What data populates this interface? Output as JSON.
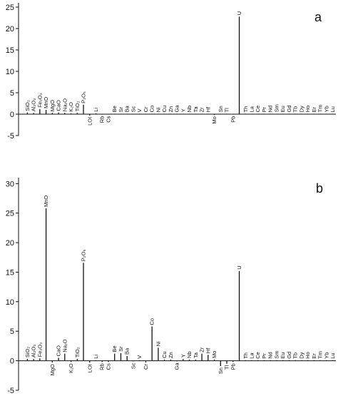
{
  "chart_data": [
    {
      "type": "bar",
      "panel_label": "a",
      "ylim": [
        -5,
        26
      ],
      "yticks": [
        -5,
        0,
        5,
        10,
        15,
        20,
        25
      ],
      "categories": [
        {
          "name": "SiO₂",
          "value": 0.4
        },
        {
          "name": "Al₂O₃",
          "value": 0.3
        },
        {
          "name": "Fe₂O₃",
          "value": 1.2
        },
        {
          "name": "MnO",
          "value": 1.0
        },
        {
          "name": "MgO",
          "value": 0.3
        },
        {
          "name": "CaO",
          "value": 0.4
        },
        {
          "name": "Na₂O",
          "value": 0.3
        },
        {
          "name": "K₂O",
          "value": 0.2
        },
        {
          "name": "TiO₂",
          "value": 0.3
        },
        {
          "name": "P₂O₅",
          "value": 2.2
        },
        {
          "name": "LOI",
          "value": -0.3
        },
        {
          "name": "Li",
          "value": 0.2
        },
        {
          "name": "Rb",
          "value": -0.1
        },
        {
          "name": "Cs",
          "value": -0.1
        },
        {
          "name": "Be",
          "value": 0.1
        },
        {
          "name": "Sr",
          "value": 0.1
        },
        {
          "name": "Ba",
          "value": 0.1
        },
        {
          "name": "Sc",
          "value": 0.1
        },
        {
          "name": "V",
          "value": 0.1
        },
        {
          "name": "Cr",
          "value": 0.1
        },
        {
          "name": "Co",
          "value": 0.1
        },
        {
          "name": "Ni",
          "value": 0.1
        },
        {
          "name": "Cu",
          "value": 0.1
        },
        {
          "name": "Zn",
          "value": 0.1
        },
        {
          "name": "Ga",
          "value": 0.1
        },
        {
          "name": "Y",
          "value": 0.1
        },
        {
          "name": "Nb",
          "value": 0.1
        },
        {
          "name": "Ta",
          "value": 0.1
        },
        {
          "name": "Zr",
          "value": 0.1
        },
        {
          "name": "Hf",
          "value": 0.1
        },
        {
          "name": "Mo",
          "value": -0.2
        },
        {
          "name": "Sn",
          "value": 0.1
        },
        {
          "name": "Tl",
          "value": 0.1
        },
        {
          "name": "Pb",
          "value": -0.1
        },
        {
          "name": "U",
          "value": 22.8
        },
        {
          "name": "Th",
          "value": 0.1
        },
        {
          "name": "La",
          "value": 0.1
        },
        {
          "name": "Ce",
          "value": 0.1
        },
        {
          "name": "Pr",
          "value": 0.1
        },
        {
          "name": "Nd",
          "value": 0.1
        },
        {
          "name": "Sm",
          "value": 0.1
        },
        {
          "name": "Eu",
          "value": 0.1
        },
        {
          "name": "Gd",
          "value": 0.1
        },
        {
          "name": "Tb",
          "value": 0.1
        },
        {
          "name": "Dy",
          "value": 0.1
        },
        {
          "name": "Ho",
          "value": 0.1
        },
        {
          "name": "Er",
          "value": 0.1
        },
        {
          "name": "Tm",
          "value": 0.1
        },
        {
          "name": "Yb",
          "value": 0.1
        },
        {
          "name": "Lu",
          "value": 0.1
        }
      ]
    },
    {
      "type": "bar",
      "panel_label": "b",
      "ylim": [
        -5,
        31
      ],
      "yticks": [
        -5,
        0,
        5,
        10,
        15,
        20,
        25,
        30
      ],
      "categories": [
        {
          "name": "SiO₂",
          "value": 0.3
        },
        {
          "name": "Al₂O₃",
          "value": 0.3
        },
        {
          "name": "Fe₂O₃",
          "value": 0.4
        },
        {
          "name": "MnO",
          "value": 25.8
        },
        {
          "name": "MgO",
          "value": -0.3
        },
        {
          "name": "CaO",
          "value": 0.5
        },
        {
          "name": "Na₂O",
          "value": 1.2
        },
        {
          "name": "K₂O",
          "value": -0.2
        },
        {
          "name": "TiO₂",
          "value": 0.3
        },
        {
          "name": "P₂O₅",
          "value": 16.6
        },
        {
          "name": "LOI",
          "value": -0.3
        },
        {
          "name": "Li",
          "value": 0.1
        },
        {
          "name": "Rb",
          "value": -0.2
        },
        {
          "name": "Cs",
          "value": -0.2
        },
        {
          "name": "Be",
          "value": 1.2
        },
        {
          "name": "Sr",
          "value": 1.3
        },
        {
          "name": "Ba",
          "value": 0.8
        },
        {
          "name": "Sc",
          "value": -0.1
        },
        {
          "name": "V",
          "value": 0.1
        },
        {
          "name": "Cr",
          "value": -0.3
        },
        {
          "name": "Co",
          "value": 5.8
        },
        {
          "name": "Ni",
          "value": 2.2
        },
        {
          "name": "Cu",
          "value": 0.2
        },
        {
          "name": "Zn",
          "value": 0.2
        },
        {
          "name": "Ga",
          "value": -0.1
        },
        {
          "name": "Y",
          "value": 0.3
        },
        {
          "name": "Nb",
          "value": 0.2
        },
        {
          "name": "Ta",
          "value": 0.2
        },
        {
          "name": "Zr",
          "value": 1.2
        },
        {
          "name": "Hf",
          "value": 1.0
        },
        {
          "name": "Mo",
          "value": 0.2
        },
        {
          "name": "Sn",
          "value": -0.9
        },
        {
          "name": "Tl",
          "value": -0.5
        },
        {
          "name": "Pb",
          "value": -0.2
        },
        {
          "name": "U",
          "value": 15.2
        },
        {
          "name": "Th",
          "value": 0.1
        },
        {
          "name": "La",
          "value": 0.1
        },
        {
          "name": "Ce",
          "value": 0.1
        },
        {
          "name": "Pr",
          "value": 0.1
        },
        {
          "name": "Nd",
          "value": 0.1
        },
        {
          "name": "Sm",
          "value": 0.1
        },
        {
          "name": "Eu",
          "value": 0.1
        },
        {
          "name": "Gd",
          "value": 0.1
        },
        {
          "name": "Tb",
          "value": 0.1
        },
        {
          "name": "Dy",
          "value": 0.1
        },
        {
          "name": "Ho",
          "value": 0.1
        },
        {
          "name": "Er",
          "value": 0.1
        },
        {
          "name": "Tm",
          "value": 0.1
        },
        {
          "name": "Yb",
          "value": 0.1
        },
        {
          "name": "Lu",
          "value": 0.1
        }
      ]
    }
  ]
}
